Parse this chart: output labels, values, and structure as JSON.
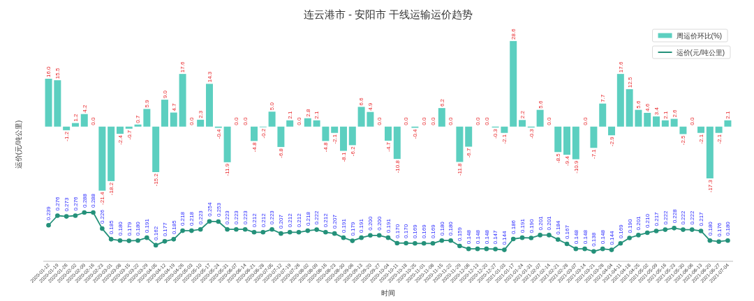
{
  "chart_data": {
    "type": "bar",
    "title": "连云港市 - 安阳市 干线运输运价趋势",
    "xlabel": "时间",
    "ylabel": "运价(元/吨公里)",
    "categories": [
      "2020-01-12",
      "2020-01-19",
      "2020-01-26",
      "2020-02-02",
      "2020-02-09",
      "2020-02-16",
      "2020-02-23",
      "2020-03-01",
      "2020-03-08",
      "2020-03-15",
      "2020-03-22",
      "2020-03-29",
      "2020-04-05",
      "2020-04-12",
      "2020-04-19",
      "2020-04-26",
      "2020-05-03",
      "2020-05-10",
      "2020-05-17",
      "2020-05-24",
      "2020-05-31",
      "2020-06-07",
      "2020-06-14",
      "2020-06-21",
      "2020-06-28",
      "2020-07-05",
      "2020-07-12",
      "2020-07-19",
      "2020-07-26",
      "2020-08-02",
      "2020-08-09",
      "2020-08-16",
      "2020-08-23",
      "2020-08-30",
      "2020-09-06",
      "2020-09-13",
      "2020-09-20",
      "2020-09-27",
      "2020-10-04",
      "2020-10-11",
      "2020-10-18",
      "2020-10-25",
      "2020-11-01",
      "2020-11-08",
      "2020-11-15",
      "2020-11-22",
      "2020-11-29",
      "2020-12-06",
      "2020-12-13",
      "2020-12-20",
      "2020-12-27",
      "2021-01-03",
      "2021-01-17",
      "2021-01-24",
      "2021-01-31",
      "2021-02-07",
      "2021-02-14",
      "2021-02-21",
      "2021-02-28",
      "2021-03-07",
      "2021-03-14",
      "2021-03-21",
      "2021-03-28",
      "2021-04-04",
      "2021-04-11",
      "2021-04-18",
      "2021-04-25",
      "2021-05-02",
      "2021-05-09",
      "2021-05-16",
      "2021-05-23",
      "2021-05-30",
      "2021-06-06",
      "2021-06-13",
      "2021-06-20",
      "2021-06-27",
      "2021-07-04"
    ],
    "series": [
      {
        "name": "周运价环比(%)",
        "color": "#5ccfc0",
        "values": [
          16.0,
          15.5,
          -1.2,
          1.2,
          4.2,
          0.0,
          -21.4,
          -18.2,
          -2.4,
          -0.7,
          0.7,
          5.9,
          -15.2,
          9.0,
          4.7,
          17.6,
          0.0,
          2.3,
          14.3,
          -0.4,
          -11.9,
          0.0,
          0.0,
          -4.8,
          -0.2,
          5.0,
          -6.8,
          2.1,
          0.0,
          2.8,
          2.1,
          -4.8,
          -2.1,
          -8.1,
          -6.2,
          6.6,
          4.9,
          0.0,
          -4.7,
          -10.8,
          0.0,
          -0.4,
          0.0,
          0.0,
          6.2,
          0.0,
          -11.8,
          -6.7,
          0.0,
          0.0,
          -0.3,
          -2.1,
          28.6,
          2.2,
          -0.3,
          5.6,
          0.0,
          -8.5,
          -9.4,
          -10.9,
          0.0,
          -7.1,
          7.7,
          -2.9,
          17.6,
          12.5,
          5.6,
          4.6,
          3.4,
          2.1,
          2.6,
          -2.5,
          0.0,
          -2.1,
          -17.3,
          -2.1,
          2.1
        ],
        "value_labels": [
          "16.0",
          "15.5",
          "-1.2",
          "1.2",
          "4.2",
          "0.0",
          "-21.4",
          "-18.2",
          "-2.4",
          "-0.7",
          "0.7",
          "5.9",
          "-15.2",
          "9.0",
          "4.7",
          "17.6",
          "0.0",
          "2.3",
          "14.3",
          "-0.4",
          "-11.9",
          "0.0",
          "0.0",
          "-4.8",
          "-0.2",
          "5.0",
          "-6.8",
          "2.1",
          "0.0",
          "2.8",
          "2.1",
          "-4.8",
          "-2.1",
          "-8.1",
          "-6.2",
          "6.6",
          "4.9",
          "0.0",
          "-4.7",
          "-10.8",
          "0.0",
          "-0.4",
          "0.0",
          "0.0",
          "6.2",
          "0.0",
          "-11.8",
          "-6.7",
          "0.0",
          "0.0",
          "-0.3",
          "-2.1",
          "28.6",
          "2.2",
          "-0.3",
          "5.6",
          "0.0",
          "-8.5",
          "-9.4",
          "-10.9",
          "0.0",
          "-7.1",
          "7.7",
          "-2.9",
          "17.6",
          "12.5",
          "5.6",
          "4.6",
          "3.4",
          "2.1",
          "2.6",
          "-2.5",
          "0.0",
          "-2.1",
          "-17.3",
          "-2.1",
          "2.1"
        ]
      },
      {
        "name": "运价(元/吨公里)",
        "type": "line",
        "axis": "y2",
        "color": "#24917a",
        "values": [
          0.239,
          0.276,
          0.273,
          0.276,
          0.288,
          0.288,
          0.226,
          0.185,
          0.18,
          0.179,
          0.18,
          0.191,
          0.162,
          0.177,
          0.185,
          0.218,
          0.218,
          0.223,
          0.254,
          0.253,
          0.223,
          0.223,
          0.223,
          0.212,
          0.212,
          0.223,
          0.207,
          0.212,
          0.212,
          0.218,
          0.222,
          0.212,
          0.207,
          0.191,
          0.179,
          0.191,
          0.2,
          0.2,
          0.191,
          0.17,
          0.17,
          0.169,
          0.169,
          0.169,
          0.18,
          0.18,
          0.159,
          0.148,
          0.148,
          0.148,
          0.147,
          0.144,
          0.186,
          0.191,
          0.19,
          0.201,
          0.201,
          0.184,
          0.167,
          0.148,
          0.148,
          0.138,
          0.148,
          0.144,
          0.169,
          0.19,
          0.201,
          0.21,
          0.217,
          0.222,
          0.228,
          0.222,
          0.222,
          0.217,
          0.18,
          0.176,
          0.18
        ],
        "value_labels": [
          "0.239",
          "0.276",
          "0.273",
          "0.276",
          "0.288",
          "0.288",
          "0.226",
          "0.185",
          "0.180",
          "0.179",
          "0.180",
          "0.191",
          "0.162",
          "0.177",
          "0.185",
          "0.218",
          "0.218",
          "0.223",
          "0.254",
          "0.253",
          "0.223",
          "0.223",
          "0.223",
          "0.212",
          "0.212",
          "0.223",
          "0.207",
          "0.212",
          "0.212",
          "0.218",
          "0.222",
          "0.212",
          "0.207",
          "0.191",
          "0.179",
          "0.191",
          "0.200",
          "0.200",
          "0.191",
          "0.170",
          "0.170",
          "0.169",
          "0.169",
          "0.169",
          "0.180",
          "0.180",
          "0.159",
          "0.148",
          "0.148",
          "0.148",
          "0.147",
          "0.144",
          "0.186",
          "0.191",
          "0.190",
          "0.201",
          "0.201",
          "0.184",
          "0.167",
          "0.148",
          "0.148",
          "0.138",
          "0.148",
          "0.144",
          "0.169",
          "0.190",
          "0.201",
          "0.210",
          "0.217",
          "0.222",
          "0.228",
          "0.222",
          "0.222",
          "0.217",
          "0.180",
          "0.176",
          "0.180"
        ]
      }
    ],
    "ylim": [
      -45,
      33
    ],
    "y2lim": [
      0.1,
      1.0
    ],
    "tick_labels": "x",
    "legend": "top right",
    "marker": "circle"
  }
}
